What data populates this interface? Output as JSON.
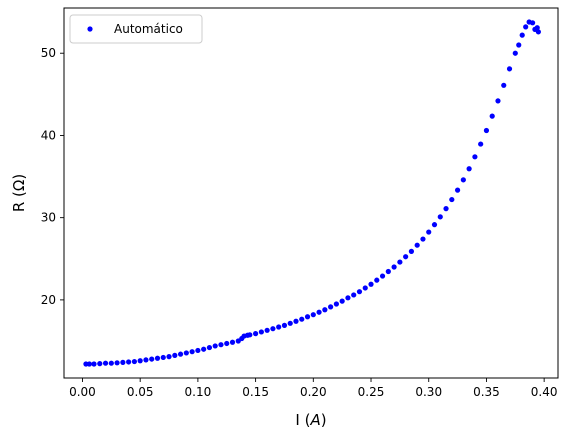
{
  "chart_data": {
    "type": "scatter",
    "xlabel": "I (A)",
    "xlabel_parts": {
      "prefix": "I (",
      "var": "A",
      "suffix": ")"
    },
    "ylabel": "R (Ω)",
    "xlim": [
      -0.016,
      0.412
    ],
    "ylim": [
      10.5,
      55.5
    ],
    "x_ticks": [
      0.0,
      0.05,
      0.1,
      0.15,
      0.2,
      0.25,
      0.3,
      0.35,
      0.4
    ],
    "x_tick_labels": [
      "0.00",
      "0.05",
      "0.10",
      "0.15",
      "0.20",
      "0.25",
      "0.30",
      "0.35",
      "0.40"
    ],
    "y_ticks": [
      20,
      30,
      40,
      50
    ],
    "y_tick_labels": [
      "20",
      "30",
      "40",
      "50"
    ],
    "grid": false,
    "legend_position": "top-left",
    "color": "#0000ff",
    "series": [
      {
        "name": "Automático",
        "marker": "dot",
        "x": [
          0.003,
          0.006,
          0.01,
          0.015,
          0.02,
          0.025,
          0.03,
          0.035,
          0.04,
          0.045,
          0.05,
          0.055,
          0.06,
          0.065,
          0.07,
          0.075,
          0.08,
          0.085,
          0.09,
          0.095,
          0.1,
          0.105,
          0.11,
          0.115,
          0.12,
          0.125,
          0.13,
          0.135,
          0.138,
          0.14,
          0.143,
          0.145,
          0.15,
          0.155,
          0.16,
          0.165,
          0.17,
          0.175,
          0.18,
          0.185,
          0.19,
          0.195,
          0.2,
          0.205,
          0.21,
          0.215,
          0.22,
          0.225,
          0.23,
          0.235,
          0.24,
          0.245,
          0.25,
          0.255,
          0.26,
          0.265,
          0.27,
          0.275,
          0.28,
          0.285,
          0.29,
          0.295,
          0.3,
          0.305,
          0.31,
          0.315,
          0.32,
          0.325,
          0.33,
          0.335,
          0.34,
          0.345,
          0.35,
          0.355,
          0.36,
          0.365,
          0.37,
          0.375,
          0.378,
          0.381,
          0.384,
          0.387,
          0.39,
          0.392,
          0.394,
          0.395
        ],
        "y": [
          12.2,
          12.2,
          12.2,
          12.25,
          12.3,
          12.3,
          12.35,
          12.4,
          12.45,
          12.5,
          12.6,
          12.7,
          12.8,
          12.9,
          13.0,
          13.1,
          13.25,
          13.4,
          13.55,
          13.7,
          13.85,
          14.0,
          14.2,
          14.4,
          14.55,
          14.7,
          14.85,
          15.0,
          15.3,
          15.6,
          15.7,
          15.75,
          15.9,
          16.1,
          16.3,
          16.5,
          16.7,
          16.9,
          17.15,
          17.4,
          17.65,
          17.95,
          18.2,
          18.5,
          18.8,
          19.15,
          19.5,
          19.85,
          20.25,
          20.6,
          21.0,
          21.45,
          21.9,
          22.4,
          22.9,
          23.45,
          24.0,
          24.6,
          25.25,
          25.9,
          26.65,
          27.4,
          28.25,
          29.15,
          30.1,
          31.1,
          32.2,
          33.35,
          34.6,
          35.95,
          37.4,
          38.95,
          40.6,
          42.35,
          44.2,
          46.1,
          48.1,
          50.0,
          51.0,
          52.2,
          53.2,
          53.8,
          53.7,
          52.9,
          53.1,
          52.6
        ]
      }
    ]
  }
}
